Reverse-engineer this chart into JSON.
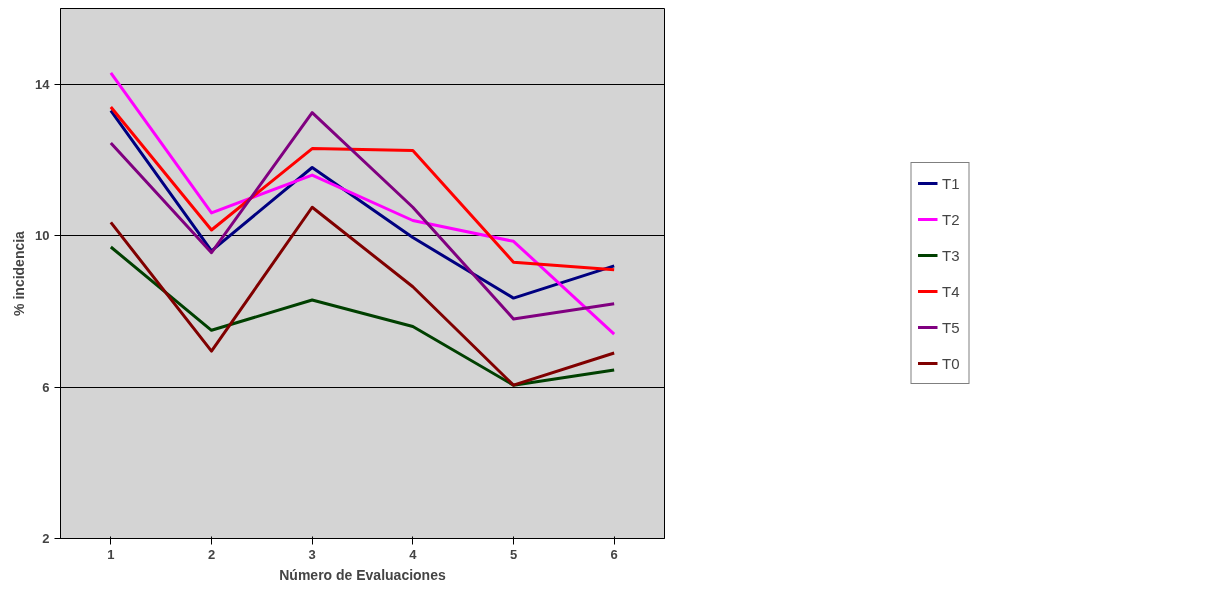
{
  "chart_data": {
    "type": "line",
    "xlabel": "Número de Evaluaciones",
    "ylabel": "% incidencia",
    "categories": [
      "1",
      "2",
      "3",
      "4",
      "5",
      "6"
    ],
    "ylim": [
      2,
      16
    ],
    "yticks": [
      2,
      6,
      10,
      14
    ],
    "grid": "y",
    "legend": "right",
    "marker": "none",
    "line_style": "solid",
    "series": [
      {
        "name": "T1",
        "color": "#000080",
        "values": [
          13.3,
          9.6,
          11.8,
          9.95,
          8.35,
          9.2
        ]
      },
      {
        "name": "T2",
        "color": "#ff00ff",
        "values": [
          14.3,
          10.6,
          11.6,
          10.4,
          9.85,
          7.4
        ]
      },
      {
        "name": "T3",
        "color": "#004000",
        "values": [
          9.7,
          7.5,
          8.3,
          7.6,
          6.05,
          6.45
        ]
      },
      {
        "name": "T4",
        "color": "#ff0000",
        "values": [
          13.4,
          10.15,
          12.3,
          12.25,
          9.3,
          9.1
        ]
      },
      {
        "name": "T5",
        "color": "#800080",
        "values": [
          12.45,
          9.55,
          13.25,
          10.75,
          7.8,
          8.2
        ]
      },
      {
        "name": "T0",
        "color": "#800000",
        "values": [
          10.35,
          6.95,
          10.75,
          8.65,
          6.05,
          6.9
        ]
      }
    ]
  }
}
